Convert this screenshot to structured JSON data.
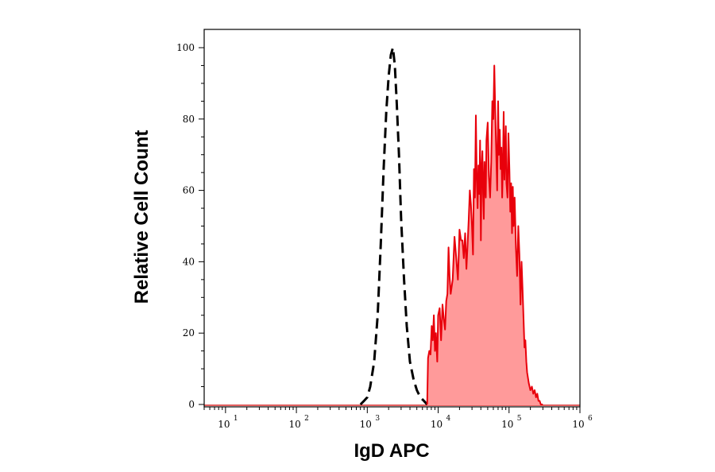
{
  "chart_data": {
    "type": "area",
    "xlabel": "IgD APC",
    "ylabel": "Relative Cell Count",
    "x_scale": "log",
    "xlim": [
      5,
      1000000
    ],
    "ylim": [
      0,
      105
    ],
    "x_ticks": [
      {
        "base": "10",
        "exp": "1",
        "value": 10
      },
      {
        "base": "10",
        "exp": "2",
        "value": 100
      },
      {
        "base": "10",
        "exp": "3",
        "value": 1000
      },
      {
        "base": "10",
        "exp": "4",
        "value": 10000
      },
      {
        "base": "10",
        "exp": "5",
        "value": 100000
      },
      {
        "base": "10",
        "exp": "6",
        "value": 1000000
      }
    ],
    "y_ticks": [
      {
        "label": "0",
        "value": 0
      },
      {
        "label": "20",
        "value": 20
      },
      {
        "label": "40",
        "value": 40
      },
      {
        "label": "60",
        "value": 60
      },
      {
        "label": "80",
        "value": 80
      },
      {
        "label": "100",
        "value": 100
      }
    ],
    "grid": false,
    "series": [
      {
        "style": "dashed",
        "color": "#000000",
        "x": [
          800,
          900,
          1000,
          1100,
          1250,
          1400,
          1550,
          1700,
          1850,
          2000,
          2150,
          2300,
          2450,
          2600,
          2800,
          3000,
          3300,
          3600,
          4000,
          4500,
          5000,
          5600,
          6300,
          7000
        ],
        "y": [
          0,
          1,
          2,
          5,
          12,
          25,
          45,
          66,
          82,
          92,
          98,
          100,
          95,
          85,
          70,
          52,
          35,
          22,
          12,
          7,
          4,
          2,
          1,
          0
        ]
      },
      {
        "style": "filled",
        "color": "#e8000b",
        "fill": "#ff9a9a",
        "x": [
          7000,
          7200,
          7500,
          7800,
          8100,
          8400,
          8700,
          9000,
          9300,
          9700,
          10000,
          10500,
          11000,
          11500,
          12000,
          12500,
          13000,
          13500,
          14000,
          14500,
          15000,
          16000,
          17000,
          18000,
          19000,
          20000,
          21000,
          22000,
          23000,
          24000,
          25000,
          26000,
          27000,
          28000,
          29000,
          30000,
          31000,
          32000,
          33000,
          34000,
          35000,
          36000,
          37000,
          38000,
          39000,
          40000,
          41000,
          42000,
          43000,
          44000,
          45000,
          46000,
          47000,
          48000,
          50000,
          52000,
          54000,
          56000,
          58000,
          60000,
          62000,
          64000,
          66000,
          68000,
          70000,
          72000,
          74000,
          76000,
          78000,
          80000,
          82000,
          84000,
          86000,
          88000,
          90000,
          92000,
          95000,
          98000,
          101000,
          104000,
          107000,
          110000,
          113000,
          116000,
          120000,
          125000,
          130000,
          135000,
          140000,
          145000,
          150000,
          155000,
          160000,
          165000,
          170000,
          175000,
          180000,
          190000,
          200000,
          210000,
          220000,
          230000,
          240000,
          250000,
          260000,
          270000,
          280000,
          300000
        ],
        "y": [
          0,
          13,
          15,
          14,
          22,
          18,
          25,
          15,
          20,
          12,
          25,
          27,
          18,
          28,
          24,
          21,
          29,
          31,
          44,
          36,
          31,
          35,
          47,
          41,
          35,
          49,
          46,
          46,
          41,
          48,
          38,
          45,
          52,
          60,
          56,
          50,
          42,
          66,
          58,
          81,
          63,
          55,
          67,
          59,
          74,
          46,
          66,
          71,
          59,
          52,
          68,
          62,
          58,
          74,
          79,
          64,
          58,
          68,
          85,
          80,
          95,
          81,
          70,
          60,
          85,
          70,
          77,
          66,
          72,
          58,
          68,
          82,
          63,
          70,
          78,
          62,
          58,
          76,
          66,
          54,
          62,
          48,
          61,
          50,
          58,
          44,
          36,
          50,
          42,
          28,
          40,
          32,
          24,
          16,
          18,
          12,
          9,
          6,
          4,
          5,
          3,
          4,
          2,
          3,
          1,
          1,
          0,
          0
        ]
      }
    ]
  }
}
